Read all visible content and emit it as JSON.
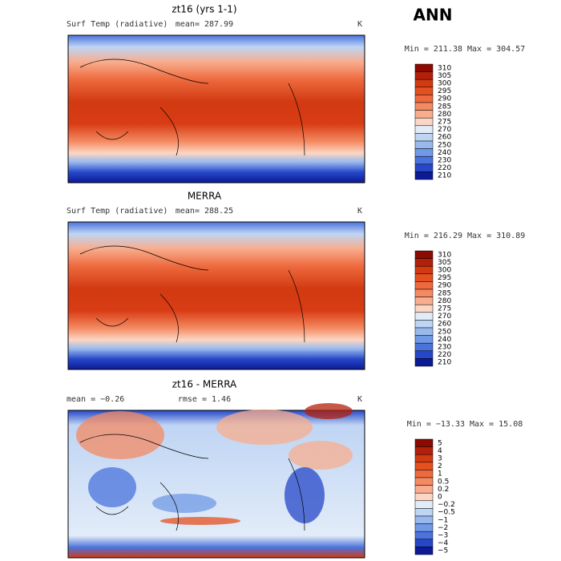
{
  "header": {
    "season": "ANN"
  },
  "panels": [
    {
      "title": "zt16 (yrs 1-1)",
      "left_label": "Surf Temp (radiative)",
      "center_label": "mean= 287.99",
      "unit": "K",
      "range_text": "Min = 211.38 Max = 304.57",
      "colorbar": {
        "labels": [
          "310",
          "305",
          "300",
          "295",
          "290",
          "285",
          "280",
          "275",
          "270",
          "260",
          "250",
          "240",
          "230",
          "220",
          "210"
        ],
        "colors": [
          "#8c0a00",
          "#b3200a",
          "#d23a12",
          "#e4501f",
          "#ee6a3e",
          "#f48a62",
          "#f8ad8e",
          "#fcd6c4",
          "#e2ecf8",
          "#bfd5f4",
          "#98b9ee",
          "#7099e6",
          "#4a73dc",
          "#2647c8",
          "#0c1a96"
        ]
      }
    },
    {
      "title": "MERRA",
      "left_label": "Surf Temp (radiative)",
      "center_label": "mean= 288.25",
      "unit": "K",
      "range_text": "Min = 216.29 Max = 310.89",
      "colorbar": {
        "labels": [
          "310",
          "305",
          "300",
          "295",
          "290",
          "285",
          "280",
          "275",
          "270",
          "260",
          "250",
          "240",
          "230",
          "220",
          "210"
        ],
        "colors": [
          "#8c0a00",
          "#b3200a",
          "#d23a12",
          "#e4501f",
          "#ee6a3e",
          "#f48a62",
          "#f8ad8e",
          "#fcd6c4",
          "#e2ecf8",
          "#bfd5f4",
          "#98b9ee",
          "#7099e6",
          "#4a73dc",
          "#2647c8",
          "#0c1a96"
        ]
      }
    },
    {
      "title": "zt16 - MERRA",
      "left_label": "mean =  −0.26",
      "center_label": "rmse =   1.46",
      "unit": "K",
      "range_text": "Min = −13.33 Max =  15.08",
      "colorbar": {
        "labels": [
          "5",
          "4",
          "3",
          "2",
          "1",
          "0.5",
          "0.2",
          "0",
          "−0.2",
          "−0.5",
          "−1",
          "−2",
          "−3",
          "−4",
          "−5"
        ],
        "colors": [
          "#8c0a00",
          "#b3200a",
          "#d23a12",
          "#e4501f",
          "#ee6a3e",
          "#f48a62",
          "#f8ad8e",
          "#fcd6c4",
          "#e2ecf8",
          "#bfd5f4",
          "#98b9ee",
          "#7099e6",
          "#4a73dc",
          "#2647c8",
          "#0c1a96"
        ]
      }
    }
  ]
}
